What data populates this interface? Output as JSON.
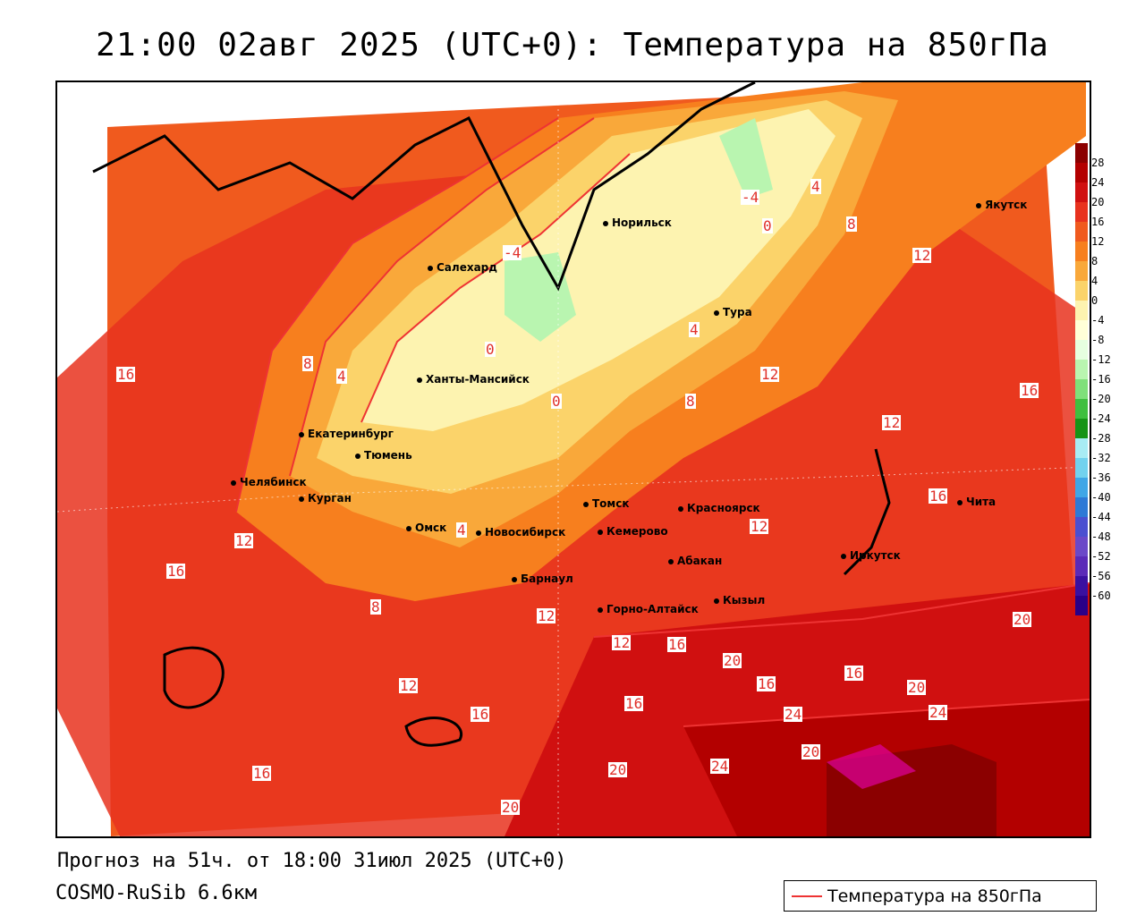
{
  "title": "21:00 02авг 2025 (UTC+0): Температура на 850гПа",
  "footer": {
    "forecast": "Прогноз на 51ч. от 18:00 31июл 2025 (UTC+0)",
    "model": "COSMO-RuSib 6.6км"
  },
  "legend": {
    "label": "Температура на 850гПа",
    "line_color": "#e33333"
  },
  "colorbar": {
    "ticks": [
      "28",
      "24",
      "20",
      "16",
      "12",
      "8",
      "4",
      "0",
      "-4",
      "-8",
      "-12",
      "-16",
      "-20",
      "-24",
      "-28",
      "-32",
      "-36",
      "-40",
      "-44",
      "-48",
      "-52",
      "-56",
      "-60"
    ],
    "colors": [
      "#8b0000",
      "#b30000",
      "#d01010",
      "#e8321e",
      "#f05a1e",
      "#f77f1e",
      "#f9a83a",
      "#fbd36a",
      "#fdf3b0",
      "#ffffd8",
      "#e6ffe0",
      "#b9f5b0",
      "#7fe07a",
      "#3fbf3f",
      "#169416",
      "#a8ecf4",
      "#72d2ee",
      "#3fa6e6",
      "#2d79d6",
      "#4a4fd0",
      "#6a48c8",
      "#5a2ab8",
      "#3a10a0",
      "#2a0088"
    ]
  },
  "cities": [
    {
      "name": "Норильск"
    },
    {
      "name": "Салехард"
    },
    {
      "name": "Тура"
    },
    {
      "name": "Ханты-Мансийск"
    },
    {
      "name": "Якутск"
    },
    {
      "name": "Екатеринбург"
    },
    {
      "name": "Тюмень"
    },
    {
      "name": "Челябинск"
    },
    {
      "name": "Курган"
    },
    {
      "name": "Омск"
    },
    {
      "name": "Новосибирск"
    },
    {
      "name": "Томск"
    },
    {
      "name": "Красноярск"
    },
    {
      "name": "Кемерово"
    },
    {
      "name": "Абакан"
    },
    {
      "name": "Барнаул"
    },
    {
      "name": "Кызыл"
    },
    {
      "name": "Горно-Алтайск"
    },
    {
      "name": "Иркутск"
    },
    {
      "name": "Чита"
    }
  ],
  "contour_labels": [
    "-4",
    "0",
    "4",
    "8",
    "12",
    "16",
    "0",
    "4",
    "8",
    "12",
    "16",
    "0",
    "-4",
    "4",
    "8",
    "12",
    "16",
    "20",
    "24",
    "20",
    "24",
    "20",
    "16",
    "12",
    "16",
    "20",
    "24",
    "16",
    "20",
    "16",
    "12",
    "8",
    "4",
    "12",
    "16",
    "12",
    "12",
    "16",
    "16",
    "20"
  ]
}
